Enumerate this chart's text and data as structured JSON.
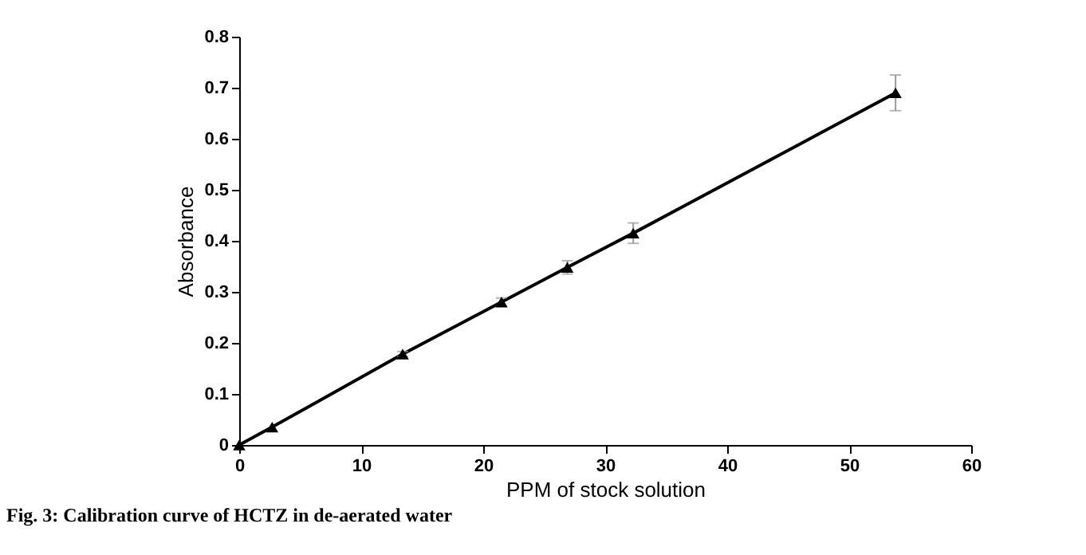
{
  "chart_data": {
    "type": "line",
    "xlabel": "PPM  of stock solution",
    "ylabel": "Absorbance",
    "annotations": [
      "Fig. 3: Calibration curve of HCTZ in de-aerated water"
    ],
    "x": [
      0,
      2.7,
      13.4,
      21.5,
      26.9,
      32.3,
      53.8
    ],
    "series": [
      {
        "color": "#000000",
        "values": [
          0,
          0.035,
          0.178,
          0.28,
          0.348,
          0.415,
          0.69
        ],
        "errors": [
          null,
          null,
          0.005,
          0.008,
          0.013,
          0.02,
          0.035
        ]
      }
    ],
    "xlim": [
      0,
      60
    ],
    "xticks": [
      0,
      10,
      20,
      30,
      40,
      50,
      60
    ],
    "ylim": [
      0,
      0.8
    ],
    "yticks": [
      0,
      0.1,
      0.2,
      0.3,
      0.4,
      0.5,
      0.6,
      0.7,
      0.8
    ],
    "grid": false,
    "marker": "triangle",
    "line_style": "solid"
  }
}
